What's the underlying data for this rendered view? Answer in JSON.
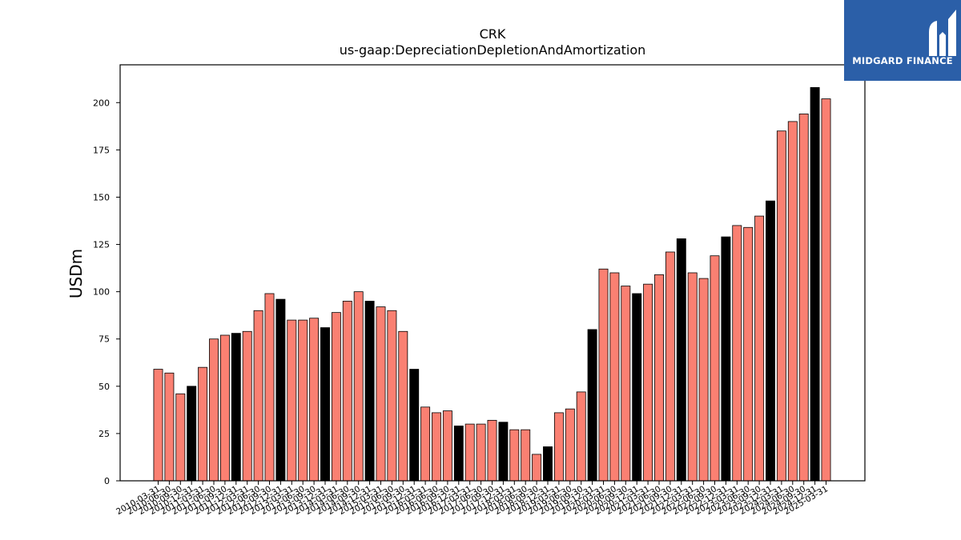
{
  "brand": {
    "name": "MIDGARD FINANCE",
    "color": "#2b5fa8"
  },
  "chart_data": {
    "type": "bar",
    "title": "CRK",
    "subtitle": "us-gaap:DepreciationDepletionAndAmortization",
    "xlabel": "",
    "ylabel": "USDm",
    "ylim": [
      0,
      220
    ],
    "yticks": [
      0,
      25,
      50,
      75,
      100,
      125,
      150,
      175,
      200
    ],
    "grid": false,
    "colors": {
      "quarter": "#fa8072",
      "annual": "#000000",
      "edge": "#000000"
    },
    "categories": [
      "2010-03-31",
      "2010-06-30",
      "2010-09-30",
      "2010-12-31",
      "2011-03-31",
      "2011-06-30",
      "2011-09-30",
      "2011-12-31",
      "2012-03-31",
      "2012-06-30",
      "2012-09-30",
      "2012-12-31",
      "2013-03-31",
      "2013-06-30",
      "2013-09-30",
      "2013-12-31",
      "2014-03-31",
      "2014-06-30",
      "2014-09-30",
      "2014-12-31",
      "2015-03-31",
      "2015-06-30",
      "2015-09-30",
      "2015-12-31",
      "2016-03-31",
      "2016-06-30",
      "2016-09-30",
      "2016-12-31",
      "2017-03-31",
      "2017-06-30",
      "2017-09-30",
      "2017-12-31",
      "2018-03-31",
      "2018-06-30",
      "2018-09-30",
      "2018-12-31",
      "2019-03-31",
      "2019-06-30",
      "2019-09-30",
      "2019-12-31",
      "2020-03-31",
      "2020-06-30",
      "2020-09-30",
      "2020-12-31",
      "2021-03-31",
      "2021-06-30",
      "2021-09-30",
      "2021-12-31",
      "2022-03-31",
      "2022-06-30",
      "2022-09-30",
      "2022-12-31",
      "2023-03-31",
      "2023-06-30",
      "2023-09-30",
      "2023-12-31",
      "2024-03-31",
      "2024-06-30",
      "2024-09-30",
      "2024-12-31",
      "2025-03-31"
    ],
    "values": [
      59,
      57,
      46,
      50,
      60,
      75,
      77,
      78,
      79,
      90,
      99,
      96,
      85,
      85,
      86,
      81,
      89,
      95,
      100,
      95,
      92,
      90,
      79,
      59,
      39,
      36,
      37,
      29,
      30,
      30,
      32,
      31,
      27,
      27,
      14,
      18,
      36,
      38,
      47,
      80,
      112,
      110,
      103,
      99,
      104,
      109,
      121,
      128,
      110,
      107,
      119,
      129,
      135,
      134,
      140,
      148,
      185,
      190,
      194,
      208,
      202
    ],
    "annual": [
      3,
      7,
      11,
      15,
      19,
      23,
      27,
      31,
      35,
      39,
      43,
      47,
      51,
      55,
      59
    ]
  }
}
